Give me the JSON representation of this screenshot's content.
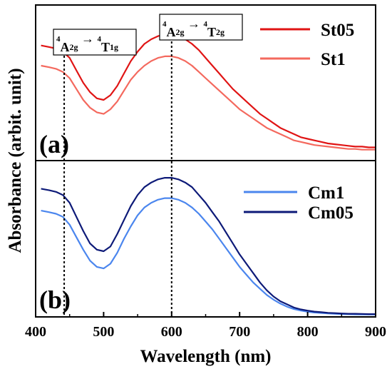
{
  "chart_data": [
    {
      "panel": "a",
      "type": "line",
      "panel_label": "(a)",
      "xlim": [
        400,
        900
      ],
      "series": [
        {
          "name": "St05",
          "color": "#e01414",
          "x": [
            408,
            420,
            430,
            440,
            450,
            460,
            470,
            480,
            490,
            500,
            510,
            520,
            530,
            540,
            550,
            560,
            570,
            580,
            590,
            600,
            610,
            620,
            630,
            640,
            650,
            660,
            670,
            680,
            690,
            700,
            710,
            720,
            730,
            740,
            750,
            760,
            770,
            780,
            790,
            800,
            810,
            820,
            830,
            840,
            850,
            860,
            870,
            880,
            890,
            900
          ],
          "y": [
            0.74,
            0.73,
            0.72,
            0.7,
            0.66,
            0.58,
            0.5,
            0.44,
            0.4,
            0.39,
            0.42,
            0.48,
            0.56,
            0.64,
            0.7,
            0.75,
            0.78,
            0.8,
            0.81,
            0.81,
            0.8,
            0.78,
            0.75,
            0.71,
            0.66,
            0.61,
            0.56,
            0.51,
            0.46,
            0.42,
            0.38,
            0.34,
            0.3,
            0.27,
            0.24,
            0.21,
            0.19,
            0.17,
            0.15,
            0.14,
            0.13,
            0.12,
            0.11,
            0.105,
            0.1,
            0.095,
            0.09,
            0.09,
            0.085,
            0.085
          ]
        },
        {
          "name": "St1",
          "color": "#f4695e",
          "x": [
            408,
            420,
            430,
            440,
            450,
            460,
            470,
            480,
            490,
            500,
            510,
            520,
            530,
            540,
            550,
            560,
            570,
            580,
            590,
            600,
            610,
            620,
            630,
            640,
            650,
            660,
            670,
            680,
            690,
            700,
            710,
            720,
            730,
            740,
            750,
            760,
            770,
            780,
            790,
            800,
            810,
            820,
            830,
            840,
            850,
            860,
            870,
            880,
            890,
            900
          ],
          "y": [
            0.61,
            0.6,
            0.59,
            0.57,
            0.53,
            0.46,
            0.39,
            0.34,
            0.31,
            0.3,
            0.33,
            0.38,
            0.45,
            0.52,
            0.57,
            0.61,
            0.64,
            0.66,
            0.67,
            0.67,
            0.66,
            0.64,
            0.61,
            0.57,
            0.53,
            0.49,
            0.45,
            0.41,
            0.37,
            0.33,
            0.3,
            0.27,
            0.24,
            0.21,
            0.19,
            0.17,
            0.15,
            0.13,
            0.12,
            0.11,
            0.1,
            0.095,
            0.09,
            0.085,
            0.08,
            0.075,
            0.075,
            0.07,
            0.07,
            0.07
          ]
        }
      ]
    },
    {
      "panel": "b",
      "type": "line",
      "panel_label": "(b)",
      "xlim": [
        400,
        900
      ],
      "series": [
        {
          "name": "Cm1",
          "color": "#4b86ee",
          "x": [
            408,
            420,
            430,
            440,
            450,
            460,
            470,
            480,
            490,
            500,
            510,
            520,
            530,
            540,
            550,
            560,
            570,
            580,
            590,
            600,
            610,
            620,
            630,
            640,
            650,
            660,
            670,
            680,
            690,
            700,
            710,
            720,
            730,
            740,
            750,
            760,
            770,
            780,
            790,
            800,
            810,
            820,
            830,
            840,
            850,
            860,
            870,
            880,
            890,
            900
          ],
          "y": [
            0.68,
            0.67,
            0.66,
            0.64,
            0.59,
            0.51,
            0.43,
            0.36,
            0.32,
            0.31,
            0.34,
            0.41,
            0.5,
            0.58,
            0.65,
            0.7,
            0.73,
            0.75,
            0.76,
            0.76,
            0.75,
            0.73,
            0.7,
            0.66,
            0.61,
            0.56,
            0.5,
            0.44,
            0.38,
            0.32,
            0.27,
            0.22,
            0.18,
            0.14,
            0.11,
            0.085,
            0.065,
            0.05,
            0.04,
            0.033,
            0.028,
            0.025,
            0.022,
            0.02,
            0.018,
            0.017,
            0.016,
            0.015,
            0.015,
            0.015
          ]
        },
        {
          "name": "Cm05",
          "color": "#0d1a78",
          "x": [
            408,
            420,
            430,
            440,
            450,
            460,
            470,
            480,
            490,
            500,
            510,
            520,
            530,
            540,
            550,
            560,
            570,
            580,
            590,
            600,
            610,
            620,
            630,
            640,
            650,
            660,
            670,
            680,
            690,
            700,
            710,
            720,
            730,
            740,
            750,
            760,
            770,
            780,
            790,
            800,
            810,
            820,
            830,
            840,
            850,
            860,
            870,
            880,
            890,
            900
          ],
          "y": [
            0.82,
            0.81,
            0.8,
            0.78,
            0.73,
            0.64,
            0.55,
            0.47,
            0.43,
            0.42,
            0.45,
            0.53,
            0.62,
            0.71,
            0.78,
            0.83,
            0.86,
            0.88,
            0.89,
            0.89,
            0.88,
            0.86,
            0.83,
            0.78,
            0.73,
            0.67,
            0.61,
            0.54,
            0.47,
            0.4,
            0.34,
            0.28,
            0.22,
            0.17,
            0.13,
            0.1,
            0.08,
            0.06,
            0.048,
            0.04,
            0.034,
            0.03,
            0.026,
            0.024,
            0.022,
            0.02,
            0.02,
            0.019,
            0.018,
            0.018
          ]
        }
      ]
    }
  ],
  "axes": {
    "xlabel": "Wavelength (nm)",
    "ylabel": "Absorbance (arbit. unit)",
    "xticks": [
      400,
      500,
      600,
      700,
      800,
      900
    ]
  },
  "annotations": [
    {
      "x": 442,
      "lower_sup": "4",
      "lower_base": "A",
      "lower_sub": "2g",
      "arrow": "→",
      "upper_sup": "4",
      "upper_base": "T",
      "upper_sub": "1g"
    },
    {
      "x": 600,
      "lower_sup": "4",
      "lower_base": "A",
      "lower_sub": "2g",
      "arrow": "→",
      "upper_sup": "4",
      "upper_base": "T",
      "upper_sub": "2g"
    }
  ]
}
